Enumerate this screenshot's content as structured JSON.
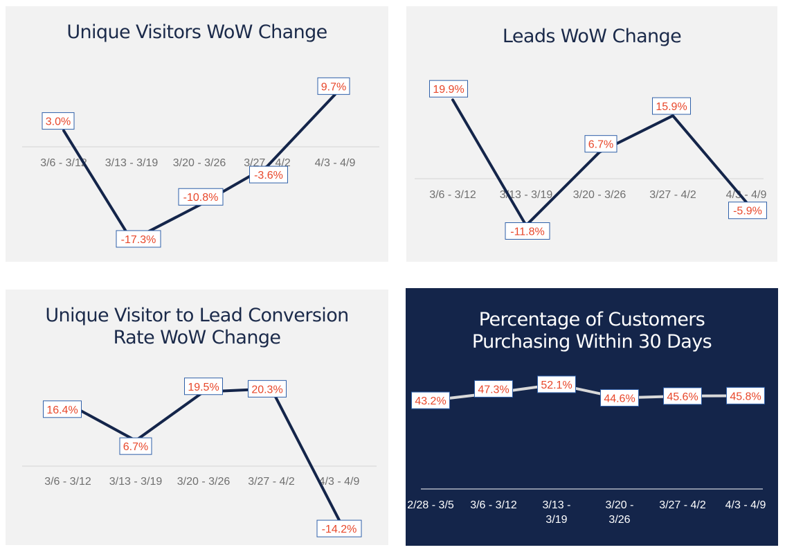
{
  "chart_data": [
    {
      "type": "line",
      "title": "Unique Visitors WoW Change",
      "categories": [
        "3/6 - 3/12",
        "3/13 - 3/19",
        "3/20 - 3/26",
        "3/27 - 4/2",
        "4/3 - 4/9"
      ],
      "values": [
        3.0,
        -17.3,
        -10.8,
        -3.6,
        9.7
      ],
      "data_labels": [
        "3.0%",
        "-17.3%",
        "-10.8%",
        "-3.6%",
        "9.7%"
      ],
      "line_color": "#14254a",
      "label_color": "#e8472a",
      "label_border_color": "#2e5fa8",
      "background": "#f2f2f2"
    },
    {
      "type": "line",
      "title": "Leads WoW Change",
      "categories": [
        "3/6 - 3/12",
        "3/13 - 3/19",
        "3/20 - 3/26",
        "3/27 - 4/2",
        "4/3 - 4/9"
      ],
      "values": [
        19.9,
        -11.8,
        6.7,
        15.9,
        -5.9
      ],
      "data_labels": [
        "19.9%",
        "-11.8%",
        "6.7%",
        "15.9%",
        "-5.9%"
      ],
      "line_color": "#14254a",
      "label_color": "#e8472a",
      "label_border_color": "#2e5fa8",
      "background": "#f2f2f2"
    },
    {
      "type": "line",
      "title": [
        "Unique Visitor to Lead Conversion",
        "Rate WoW Change"
      ],
      "categories": [
        "3/6 - 3/12",
        "3/13 - 3/19",
        "3/20 - 3/26",
        "3/27 - 4/2",
        "4/3 - 4/9"
      ],
      "values": [
        16.4,
        6.7,
        19.5,
        20.3,
        -14.2
      ],
      "data_labels": [
        "16.4%",
        "6.7%",
        "19.5%",
        "20.3%",
        "-14.2%"
      ],
      "line_color": "#14254a",
      "label_color": "#e8472a",
      "label_border_color": "#2e5fa8",
      "background": "#f2f2f2"
    },
    {
      "type": "line",
      "title": [
        "Percentage of Customers",
        "Purchasing Within 30 Days"
      ],
      "categories": [
        [
          "2/28 - 3/5"
        ],
        [
          "3/6 - 3/12"
        ],
        [
          "3/13 -",
          "3/19"
        ],
        [
          "3/20 -",
          "3/26"
        ],
        [
          "3/27 - 4/2"
        ],
        [
          "4/3 - 4/9"
        ]
      ],
      "values": [
        43.2,
        47.3,
        52.1,
        44.6,
        45.6,
        45.8
      ],
      "data_labels": [
        "43.2%",
        "47.3%",
        "52.1%",
        "44.6%",
        "45.6%",
        "45.8%"
      ],
      "line_color": "#d9d9d9",
      "label_color": "#e8472a",
      "label_border_color": "#2e5fa8",
      "background": "#14254a"
    }
  ]
}
